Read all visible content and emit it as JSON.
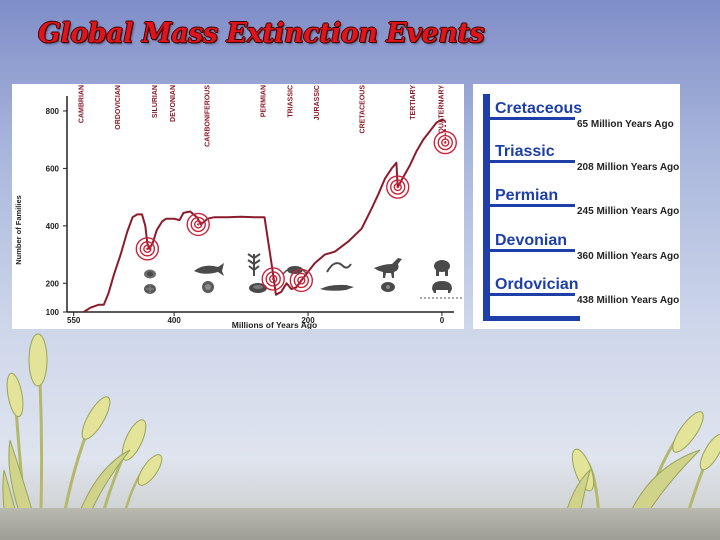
{
  "title": "Global Mass Extinction Events",
  "chart_data": {
    "type": "line",
    "xlabel": "Millions of Years Ago",
    "ylabel": "Number of Families",
    "x_reversed": true,
    "xlim": [
      560,
      -30
    ],
    "ylim": [
      100,
      880
    ],
    "x_ticks": [
      {
        "value": 550,
        "label": "550"
      },
      {
        "value": 400,
        "label": "400"
      },
      {
        "value": 200,
        "label": "200"
      },
      {
        "value": 0,
        "label": "0"
      }
    ],
    "y_ticks": [
      {
        "value": 100,
        "label": "100"
      },
      {
        "value": 200,
        "label": "200"
      },
      {
        "value": 400,
        "label": "400"
      },
      {
        "value": 600,
        "label": "600"
      },
      {
        "value": 800,
        "label": "800"
      }
    ],
    "periods": [
      {
        "name": "CAMBRIAN",
        "x": 540
      },
      {
        "name": "ORDOVICIAN",
        "x": 485
      },
      {
        "name": "SILURIAN",
        "x": 430
      },
      {
        "name": "DEVONIAN",
        "x": 403
      },
      {
        "name": "CARBONIFEROUS",
        "x": 352
      },
      {
        "name": "PERMIAN",
        "x": 268
      },
      {
        "name": "TRIASSIC",
        "x": 228
      },
      {
        "name": "JURASSIC",
        "x": 188
      },
      {
        "name": "CRETACEOUS",
        "x": 120
      },
      {
        "name": "TERTIARY",
        "x": 45
      },
      {
        "name": "QUATERNARY",
        "x": 2
      }
    ],
    "series": [
      {
        "color": "#8b1c2c",
        "points": [
          [
            535,
            100
          ],
          [
            525,
            115
          ],
          [
            513,
            125
          ],
          [
            505,
            125
          ],
          [
            498,
            165
          ],
          [
            490,
            230
          ],
          [
            480,
            300
          ],
          [
            470,
            380
          ],
          [
            462,
            430
          ],
          [
            455,
            440
          ],
          [
            448,
            440
          ],
          [
            443,
            400
          ],
          [
            440,
            340
          ],
          [
            437,
            320
          ],
          [
            432,
            340
          ],
          [
            426,
            385
          ],
          [
            418,
            415
          ],
          [
            412,
            425
          ],
          [
            400,
            425
          ],
          [
            392,
            420
          ],
          [
            386,
            445
          ],
          [
            376,
            450
          ],
          [
            366,
            430
          ],
          [
            360,
            405
          ],
          [
            350,
            425
          ],
          [
            340,
            430
          ],
          [
            320,
            430
          ],
          [
            300,
            432
          ],
          [
            280,
            430
          ],
          [
            265,
            430
          ],
          [
            252,
            230
          ],
          [
            248,
            160
          ],
          [
            240,
            170
          ],
          [
            232,
            200
          ],
          [
            225,
            180
          ],
          [
            218,
            185
          ],
          [
            205,
            225
          ],
          [
            190,
            270
          ],
          [
            175,
            300
          ],
          [
            160,
            310
          ],
          [
            140,
            345
          ],
          [
            120,
            390
          ],
          [
            105,
            460
          ],
          [
            95,
            510
          ],
          [
            85,
            565
          ],
          [
            75,
            600
          ],
          [
            68,
            620
          ],
          [
            66,
            535
          ],
          [
            60,
            560
          ],
          [
            48,
            610
          ],
          [
            38,
            660
          ],
          [
            28,
            700
          ],
          [
            18,
            730
          ],
          [
            8,
            760
          ],
          [
            0,
            770
          ],
          [
            -5,
            765
          ]
        ]
      }
    ],
    "extinction_markers": [
      {
        "x": 440,
        "y": 320
      },
      {
        "x": 364,
        "y": 405
      },
      {
        "x": 252,
        "y": 215
      },
      {
        "x": 210,
        "y": 210
      },
      {
        "x": 66,
        "y": 535
      },
      {
        "x": -5,
        "y": 690
      }
    ]
  },
  "events": [
    {
      "period": "Cretaceous",
      "age": "65 Million Years Ago"
    },
    {
      "period": "Triassic",
      "age": "208 Million Years Ago"
    },
    {
      "period": "Permian",
      "age": "245 Million Years Ago"
    },
    {
      "period": "Devonian",
      "age": "360 Million Years Ago"
    },
    {
      "period": "Ordovician",
      "age": "438 Million Years Ago"
    }
  ],
  "colors": {
    "title": "#e0141a",
    "line": "#8b1c2c",
    "event_label": "#1e3fa8",
    "timeline_bar": "#1e3fa8",
    "target_ring": "#c8243a"
  },
  "fossil_icons": [
    "trilobite-icon",
    "ammonite-icon",
    "brachiopod-icon",
    "placoderm-fish-icon",
    "fern-plant-icon",
    "shelled-creature-icon",
    "sea-reptile-icon",
    "crocodile-icon",
    "ammonite-shell-icon",
    "dinosaur-icon",
    "mammoth-icon",
    "bison-icon"
  ]
}
